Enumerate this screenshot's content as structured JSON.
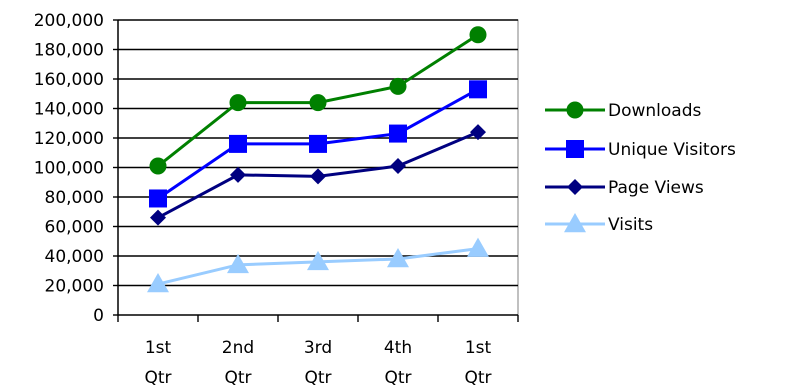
{
  "chart_data": {
    "type": "line",
    "title": "",
    "xlabel": "",
    "ylabel": "",
    "categories": [
      [
        "1st",
        "Qtr"
      ],
      [
        "2nd",
        "Qtr"
      ],
      [
        "3rd",
        "Qtr"
      ],
      [
        "4th",
        "Qtr"
      ],
      [
        "1st",
        "Qtr"
      ]
    ],
    "ylim": [
      0,
      200000
    ],
    "y_ticks": [
      0,
      20000,
      40000,
      60000,
      80000,
      100000,
      120000,
      140000,
      160000,
      180000,
      200000
    ],
    "y_tick_labels": [
      "0",
      "20,000",
      "40,000",
      "60,000",
      "80,000",
      "100,000",
      "120,000",
      "140,000",
      "160,000",
      "180,000",
      "200,000"
    ],
    "grid": "horizontal",
    "legend_position": "right",
    "series": [
      {
        "name": "Downloads",
        "values": [
          101000,
          144000,
          144000,
          155000,
          190000
        ],
        "color": "#008000",
        "marker": "circle"
      },
      {
        "name": "Unique Visitors",
        "values": [
          79000,
          116000,
          116000,
          123000,
          153000
        ],
        "color": "#0000ff",
        "marker": "square"
      },
      {
        "name": "Page Views",
        "values": [
          66000,
          95000,
          94000,
          101000,
          124000
        ],
        "color": "#000080",
        "marker": "diamond"
      },
      {
        "name": "Visits",
        "values": [
          21000,
          34000,
          36000,
          38000,
          45000
        ],
        "color": "#99ccff",
        "marker": "triangle"
      }
    ]
  }
}
